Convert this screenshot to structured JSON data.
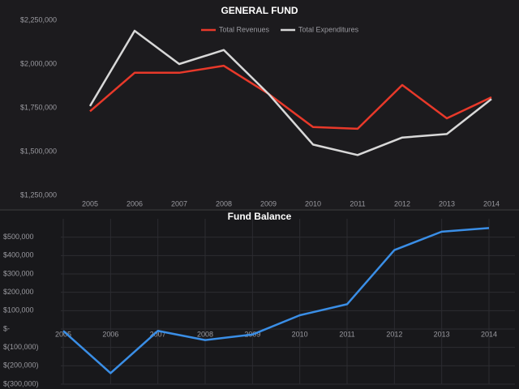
{
  "chart_data": [
    {
      "type": "line",
      "title": "GENERAL FUND",
      "categories": [
        "2005",
        "2006",
        "2007",
        "2008",
        "2009",
        "2010",
        "2011",
        "2012",
        "2013",
        "2014"
      ],
      "series": [
        {
          "name": "Total Revenues",
          "color": "#e8392a",
          "values": [
            1730000,
            1950000,
            1950000,
            1990000,
            1830000,
            1640000,
            1630000,
            1880000,
            1690000,
            1810000
          ]
        },
        {
          "name": "Total Expenditures",
          "color": "#d8d8d8",
          "values": [
            1760000,
            2190000,
            2000000,
            2080000,
            1830000,
            1540000,
            1480000,
            1580000,
            1600000,
            1800000
          ]
        }
      ],
      "ylim": [
        1250000,
        2250000
      ],
      "yticks": [
        {
          "value": 1250000,
          "label": "$1,250,000"
        },
        {
          "value": 1500000,
          "label": "$1,500,000"
        },
        {
          "value": 1750000,
          "label": "$1,750,000"
        },
        {
          "value": 2000000,
          "label": "$2,000,000"
        },
        {
          "value": 2250000,
          "label": "$2,250,000"
        }
      ],
      "grid": false,
      "legend": "top"
    },
    {
      "type": "line",
      "title": "Fund Balance",
      "categories": [
        "2005",
        "2006",
        "2007",
        "2008",
        "2009",
        "2010",
        "2011",
        "2012",
        "2013",
        "2014"
      ],
      "series": [
        {
          "color": "#3a8ee6",
          "values": [
            -10000,
            -240000,
            -10000,
            -60000,
            -30000,
            75000,
            135000,
            430000,
            530000,
            550000
          ]
        }
      ],
      "ylim": [
        -300000,
        600000
      ],
      "yticks": [
        {
          "value": -300000,
          "label": "$(300,000)"
        },
        {
          "value": -200000,
          "label": "$(200,000)"
        },
        {
          "value": -100000,
          "label": "$(100,000)"
        },
        {
          "value": 0,
          "label": "$-"
        },
        {
          "value": 100000,
          "label": "$100,000"
        },
        {
          "value": 200000,
          "label": "$200,000"
        },
        {
          "value": 300000,
          "label": "$300,000"
        },
        {
          "value": 400000,
          "label": "$400,000"
        },
        {
          "value": 500000,
          "label": "$500,000"
        }
      ],
      "grid": true
    }
  ]
}
